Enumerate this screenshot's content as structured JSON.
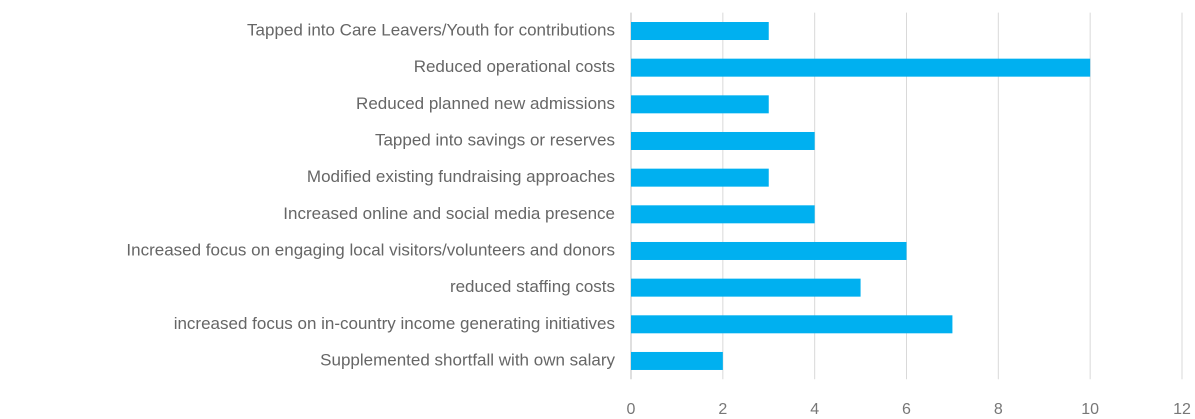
{
  "chart_data": {
    "type": "barh",
    "categories": [
      "Tapped into Care Leavers/Youth for contributions",
      "Reduced operational costs",
      "Reduced planned new admissions",
      "Tapped into savings or reserves",
      "Modified existing fundraising approaches",
      "Increased online and social media presence",
      "Increased focus on engaging local visitors/volunteers and donors",
      "reduced staffing costs",
      "increased focus on in-country income generating initiatives",
      "Supplemented shortfall with own salary"
    ],
    "values": [
      3,
      10,
      3,
      4,
      3,
      4,
      6,
      5,
      7,
      2
    ],
    "color": "#00b0f0",
    "xlim": [
      0,
      12
    ],
    "xticks": [
      0,
      2,
      4,
      6,
      8,
      10,
      12
    ],
    "grid": true
  }
}
